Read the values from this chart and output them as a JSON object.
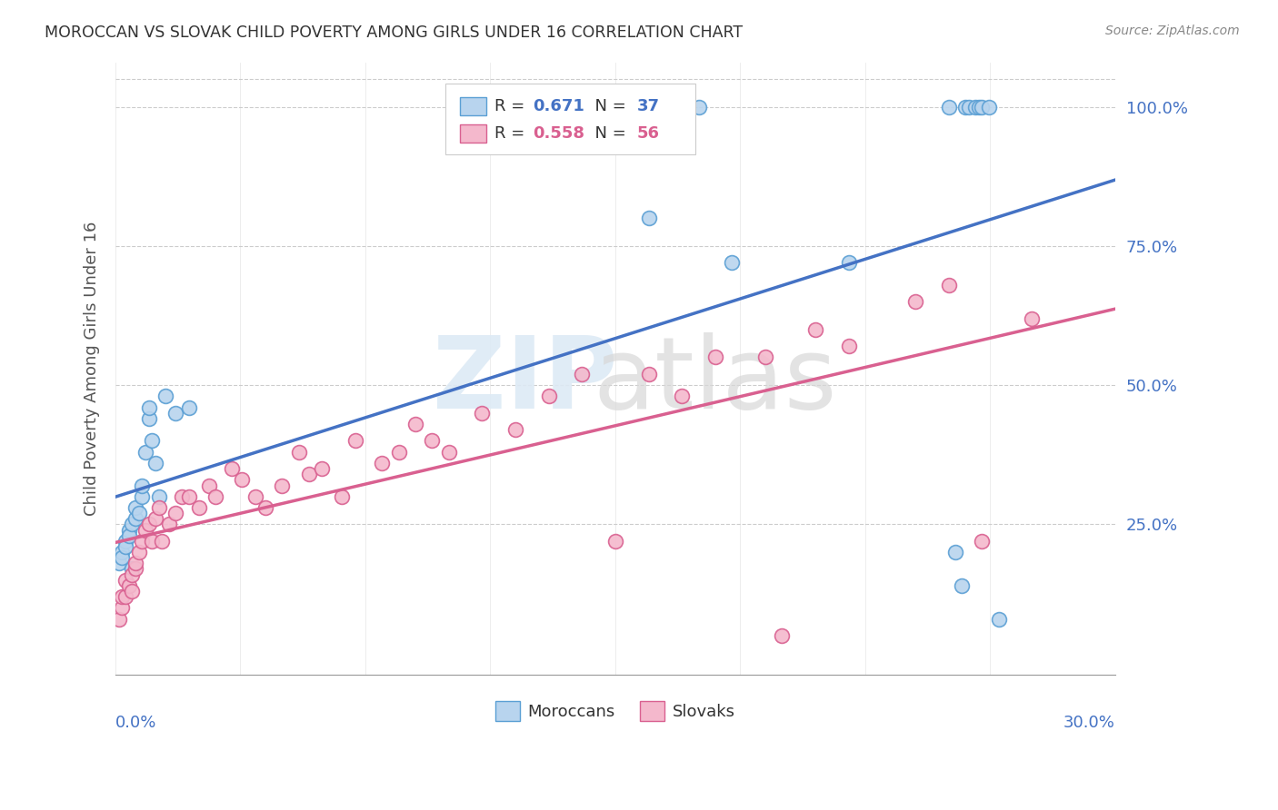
{
  "title": "MOROCCAN VS SLOVAK CHILD POVERTY AMONG GIRLS UNDER 16 CORRELATION CHART",
  "source": "Source: ZipAtlas.com",
  "ylabel": "Child Poverty Among Girls Under 16",
  "x_min": 0.0,
  "x_max": 0.3,
  "y_min": -0.02,
  "y_max": 1.08,
  "right_yticks": [
    0.25,
    0.5,
    0.75,
    1.0
  ],
  "right_yticklabels": [
    "25.0%",
    "50.0%",
    "75.0%",
    "100.0%"
  ],
  "moroccan_color": "#b8d4ee",
  "moroccan_edge": "#5a9fd4",
  "slovak_color": "#f4b8cc",
  "slovak_edge": "#d96090",
  "blue_line_color": "#4472c4",
  "pink_line_color": "#d96090",
  "legend_R_color": "#4472c4",
  "legend_R2_color": "#d96090",
  "R_moroccan": 0.671,
  "N_moroccan": 37,
  "R_slovak": 0.558,
  "N_slovak": 56,
  "moroccan_x": [
    0.001,
    0.002,
    0.002,
    0.003,
    0.003,
    0.004,
    0.004,
    0.005,
    0.005,
    0.006,
    0.006,
    0.007,
    0.008,
    0.008,
    0.009,
    0.01,
    0.01,
    0.011,
    0.012,
    0.013,
    0.015,
    0.018,
    0.022,
    0.16,
    0.175,
    0.185,
    0.22,
    0.25,
    0.252,
    0.254,
    0.255,
    0.256,
    0.258,
    0.259,
    0.26,
    0.262,
    0.265
  ],
  "moroccan_y": [
    0.18,
    0.2,
    0.19,
    0.22,
    0.21,
    0.24,
    0.23,
    0.17,
    0.25,
    0.26,
    0.28,
    0.27,
    0.3,
    0.32,
    0.38,
    0.44,
    0.46,
    0.4,
    0.36,
    0.3,
    0.48,
    0.45,
    0.46,
    0.8,
    1.0,
    0.72,
    0.72,
    1.0,
    0.2,
    0.14,
    1.0,
    1.0,
    1.0,
    1.0,
    1.0,
    1.0,
    0.08
  ],
  "slovak_x": [
    0.001,
    0.002,
    0.002,
    0.003,
    0.003,
    0.004,
    0.005,
    0.005,
    0.006,
    0.006,
    0.007,
    0.008,
    0.009,
    0.01,
    0.011,
    0.012,
    0.013,
    0.014,
    0.016,
    0.018,
    0.02,
    0.022,
    0.025,
    0.028,
    0.03,
    0.035,
    0.038,
    0.042,
    0.045,
    0.05,
    0.055,
    0.058,
    0.062,
    0.068,
    0.072,
    0.08,
    0.085,
    0.09,
    0.095,
    0.1,
    0.11,
    0.12,
    0.13,
    0.14,
    0.15,
    0.16,
    0.17,
    0.18,
    0.195,
    0.2,
    0.21,
    0.22,
    0.24,
    0.25,
    0.26,
    0.275
  ],
  "slovak_y": [
    0.08,
    0.1,
    0.12,
    0.12,
    0.15,
    0.14,
    0.13,
    0.16,
    0.17,
    0.18,
    0.2,
    0.22,
    0.24,
    0.25,
    0.22,
    0.26,
    0.28,
    0.22,
    0.25,
    0.27,
    0.3,
    0.3,
    0.28,
    0.32,
    0.3,
    0.35,
    0.33,
    0.3,
    0.28,
    0.32,
    0.38,
    0.34,
    0.35,
    0.3,
    0.4,
    0.36,
    0.38,
    0.43,
    0.4,
    0.38,
    0.45,
    0.42,
    0.48,
    0.52,
    0.22,
    0.52,
    0.48,
    0.55,
    0.55,
    0.05,
    0.6,
    0.57,
    0.65,
    0.68,
    0.22,
    0.62
  ],
  "background_color": "#ffffff",
  "grid_color": "#cccccc",
  "title_color": "#333333",
  "axis_label_color": "#4472c4"
}
